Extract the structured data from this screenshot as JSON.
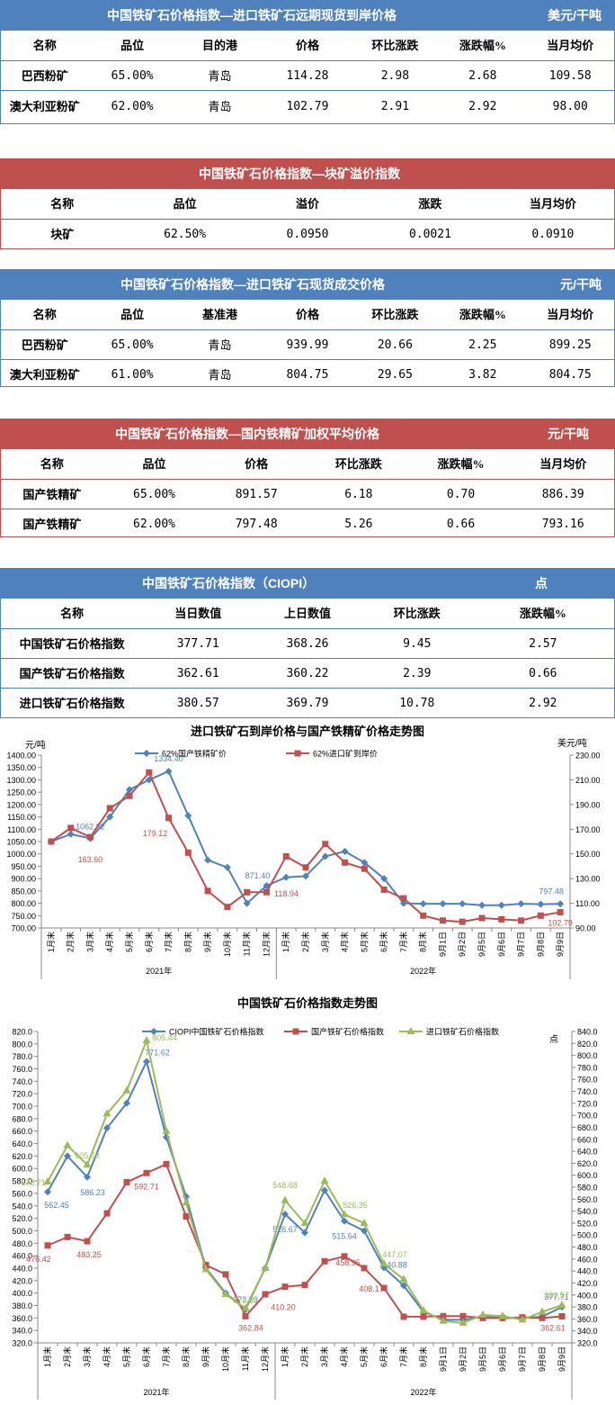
{
  "t1": {
    "title": "中国铁矿石价格指数—进口铁矿石远期现货到岸价格",
    "unit": "美元/干吨",
    "cols": [
      "名称",
      "品位",
      "目的港",
      "价格",
      "环比涨跌",
      "涨跌幅%",
      "当月均价"
    ],
    "rows": [
      [
        "巴西粉矿",
        "65.00%",
        "青岛",
        "114.28",
        "2.98",
        "2.68",
        "109.58"
      ],
      [
        "澳大利亚粉矿",
        "62.00%",
        "青岛",
        "102.79",
        "2.91",
        "2.92",
        "98.00"
      ]
    ]
  },
  "t2": {
    "title": "中国铁矿石价格指数—块矿溢价指数",
    "cols": [
      "名称",
      "品位",
      "溢价",
      "涨跌",
      "当月均价"
    ],
    "rows": [
      [
        "块矿",
        "62.50%",
        "0.0950",
        "0.0021",
        "0.0910"
      ]
    ]
  },
  "t3": {
    "title": "中国铁矿石价格指数—进口铁矿石现货成交价格",
    "unit": "元/干吨",
    "cols": [
      "名称",
      "品位",
      "基准港",
      "价格",
      "环比涨跌",
      "涨跌幅%",
      "当月均价"
    ],
    "rows": [
      [
        "巴西粉矿",
        "65.00%",
        "青岛",
        "939.99",
        "20.66",
        "2.25",
        "899.25"
      ],
      [
        "澳大利亚粉矿",
        "61.00%",
        "青岛",
        "804.75",
        "29.65",
        "3.82",
        "804.75"
      ]
    ]
  },
  "t4": {
    "title": "中国铁矿石价格指数—国内铁精矿加权平均价格",
    "unit": "元/干吨",
    "cols": [
      "名称",
      "品位",
      "价格",
      "环比涨跌",
      "涨跌幅%",
      "当月均价"
    ],
    "rows": [
      [
        "国产铁精矿",
        "65.00%",
        "891.57",
        "6.18",
        "0.70",
        "886.39"
      ],
      [
        "国产铁精矿",
        "62.00%",
        "797.48",
        "5.26",
        "0.66",
        "793.16"
      ]
    ]
  },
  "t5": {
    "title": "中国铁矿石价格指数（CIOPI）",
    "unit": "点",
    "cols": [
      "名称",
      "当日数值",
      "上日数值",
      "环比涨跌",
      "涨跌幅%"
    ],
    "rows": [
      [
        "中国铁矿石价格指数",
        "377.71",
        "368.26",
        "9.45",
        "2.57"
      ],
      [
        "国产铁矿石价格指数",
        "362.61",
        "360.22",
        "2.39",
        "0.66"
      ],
      [
        "进口铁矿石价格指数",
        "380.57",
        "369.79",
        "10.78",
        "2.92"
      ]
    ]
  },
  "chart_data": [
    {
      "type": "line",
      "title": "进口铁矿石到岸价格与国产铁精矿价格走势图",
      "ylabel_left": "元/吨",
      "ylabel_right": "美元/吨",
      "ylim_left": [
        700,
        1400
      ],
      "ylim_right": [
        90,
        230
      ],
      "yticks_left": [
        "700.00",
        "750.00",
        "800.00",
        "850.00",
        "900.00",
        "950.00",
        "1000.00",
        "1050.00",
        "1100.00",
        "1150.00",
        "1200.00",
        "1250.00",
        "1300.00",
        "1350.00",
        "1400.00"
      ],
      "yticks_right": [
        "90.00",
        "110.00",
        "130.00",
        "150.00",
        "170.00",
        "190.00",
        "210.00",
        "230.00"
      ],
      "categories": [
        "1月末",
        "2月末",
        "3月末",
        "4月末",
        "5月末",
        "6月末",
        "7月末",
        "8月末",
        "9月末",
        "10月末",
        "11月末",
        "12月末",
        "1月末",
        "2月末",
        "3月末",
        "4月末",
        "5月末",
        "6月末",
        "7月末",
        "8月末",
        "9月1日",
        "9月2日",
        "9月5日",
        "9月6日",
        "9月7日",
        "9月8日",
        "9月9日"
      ],
      "groups": [
        {
          "label": "2021年",
          "span": 12
        },
        {
          "label": "2022年",
          "span": 15
        }
      ],
      "series": [
        {
          "name": "62%国产铁精矿价",
          "axis": "left",
          "color": "#4f81bd",
          "marker": "diamond",
          "values": [
            1050,
            1080,
            1062.82,
            1150,
            1260,
            1300,
            1334.4,
            1155,
            975,
            945,
            800,
            871.4,
            905,
            910,
            990,
            1010,
            965,
            900,
            800,
            798,
            798,
            798,
            792,
            792,
            798,
            796,
            797.48
          ],
          "labels": {
            "2": "1062.82",
            "6": "1334.40",
            "11": "871.40",
            "26": "797.48"
          }
        },
        {
          "name": "62%进口矿到岸价",
          "axis": "right",
          "color": "#c0504d",
          "marker": "square",
          "values": [
            160,
            171,
            163.6,
            187,
            197,
            216,
            179.12,
            151,
            120,
            107,
            118.94,
            119,
            148,
            139,
            158,
            143,
            138,
            121,
            114,
            100,
            96,
            95,
            98,
            97,
            96,
            100,
            102.79
          ],
          "labels": {
            "2": "163.60",
            "6": "179.12",
            "11": "118.94",
            "26": "102.79"
          }
        }
      ]
    },
    {
      "type": "line",
      "title": "中国铁矿石价格指数走势图",
      "ylabel_right": "点",
      "ylim_left": [
        320,
        820
      ],
      "ylim_right": [
        320,
        840
      ],
      "categories": [
        "1月末",
        "2月末",
        "3月末",
        "4月末",
        "5月末",
        "6月末",
        "7月末",
        "8月末",
        "9月末",
        "10月末",
        "11月末",
        "12月末",
        "1月末",
        "2月末",
        "3月末",
        "4月末",
        "5月末",
        "6月末",
        "7月末",
        "8月末",
        "9月1日",
        "9月2日",
        "9月5日",
        "9月6日",
        "9月7日",
        "9月8日",
        "9月9日"
      ],
      "groups": [
        {
          "label": "2021年",
          "span": 12
        },
        {
          "label": "2022年",
          "span": 15
        }
      ],
      "series": [
        {
          "name": "CIOPI中国铁矿石价格指数",
          "color": "#4f81bd",
          "marker": "diamond",
          "values": [
            562.45,
            620,
            586.23,
            665,
            705,
            771.62,
            650,
            555,
            440,
            400,
            373.59,
            440,
            526.67,
            497,
            565,
            515.64,
            500,
            440.88,
            412,
            370,
            357,
            357,
            362,
            360,
            360,
            362,
            377.71
          ],
          "labels": {
            "0": "562.45",
            "2": "586.23",
            "5": "771.62",
            "10": "373.59",
            "12": "526.67",
            "15": "515.64",
            "17": "440.88",
            "26": "377.71"
          }
        },
        {
          "name": "国产铁矿石价格指数",
          "color": "#c0504d",
          "marker": "square",
          "values": [
            476.42,
            490,
            483.25,
            528,
            578,
            592.71,
            607,
            523,
            445,
            430,
            362.84,
            398,
            410.2,
            413,
            451,
            458.95,
            440,
            408.17,
            362,
            362,
            363,
            363,
            360,
            360,
            361,
            360,
            362.61
          ],
          "labels": {
            "0": "476.42",
            "2": "483.25",
            "5": "592.71",
            "10": "362.84",
            "12": "410.20",
            "15": "458.95",
            "17": "408.17",
            "26": "362.61"
          }
        },
        {
          "name": "进口铁矿石价格指数",
          "color": "#9bbb59",
          "marker": "triangle",
          "values": [
            578.71,
            637,
            605.78,
            688,
            725,
            805.44,
            660,
            545,
            438,
            398,
            375.63,
            440,
            548.68,
            512,
            580,
            526.35,
            512,
            447.07,
            422,
            372,
            355,
            352,
            365,
            363,
            357,
            370,
            380.57
          ],
          "labels": {
            "0": "578.71",
            "2": "605.78",
            "5": "805.44",
            "10": "375.63",
            "12": "548.68",
            "15": "526.35",
            "17": "447.07",
            "26": "380.57"
          }
        }
      ]
    }
  ]
}
